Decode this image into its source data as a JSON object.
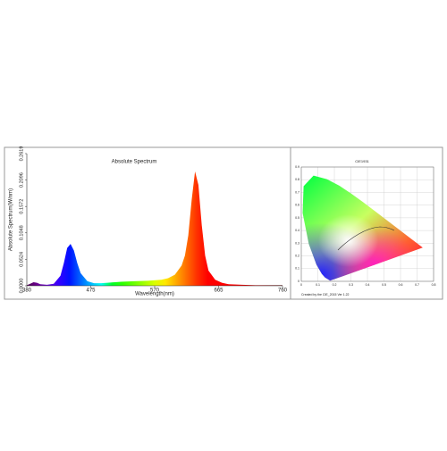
{
  "chart_data": [
    {
      "type": "area",
      "title": "Absolute Spectrum",
      "ylabel": "Absolute Spectrum(W/nm)",
      "xlabel": "Wavelength(nm)",
      "x": [
        380,
        385,
        390,
        395,
        400,
        410,
        420,
        430,
        435,
        440,
        445,
        450,
        455,
        460,
        470,
        480,
        490,
        500,
        520,
        540,
        560,
        580,
        590,
        600,
        610,
        615,
        620,
        625,
        630,
        635,
        640,
        645,
        650,
        660,
        670,
        680,
        700,
        720,
        740,
        760
      ],
      "values": [
        0.001,
        0.004,
        0.007,
        0.006,
        0.003,
        0.002,
        0.004,
        0.02,
        0.045,
        0.075,
        0.083,
        0.07,
        0.045,
        0.025,
        0.009,
        0.005,
        0.005,
        0.006,
        0.008,
        0.009,
        0.01,
        0.012,
        0.015,
        0.022,
        0.04,
        0.06,
        0.1,
        0.17,
        0.2265,
        0.2,
        0.12,
        0.06,
        0.03,
        0.012,
        0.006,
        0.003,
        0.002,
        0.001,
        0.001,
        0.001
      ],
      "xlim": [
        380,
        760
      ],
      "xticks": [
        380,
        475,
        570,
        665,
        760
      ],
      "ylim": [
        0,
        0.2619
      ],
      "yticks": [
        {
          "value": 0,
          "label": "0.0000"
        },
        {
          "value": 0.0524,
          "label": "0.0524"
        },
        {
          "value": 0.1048,
          "label": "0.1048"
        },
        {
          "value": 0.1572,
          "label": "0.1572"
        },
        {
          "value": 0.2096,
          "label": "0.2096"
        },
        {
          "value": 0.2619,
          "label": "0.2619"
        }
      ]
    },
    {
      "type": "chromaticity",
      "title": "CIE1931",
      "footer": "Created by the CIE_2015 Ver 1.22",
      "xlim": [
        0,
        0.8
      ],
      "xticks": [
        0,
        0.1,
        0.2,
        0.3,
        0.4,
        0.5,
        0.6,
        0.7,
        0.8
      ],
      "ylim": [
        0,
        0.9
      ],
      "yticks": [
        0,
        0.1,
        0.2,
        0.3,
        0.4,
        0.5,
        0.6,
        0.7,
        0.8,
        0.9
      ],
      "grid": true
    }
  ]
}
